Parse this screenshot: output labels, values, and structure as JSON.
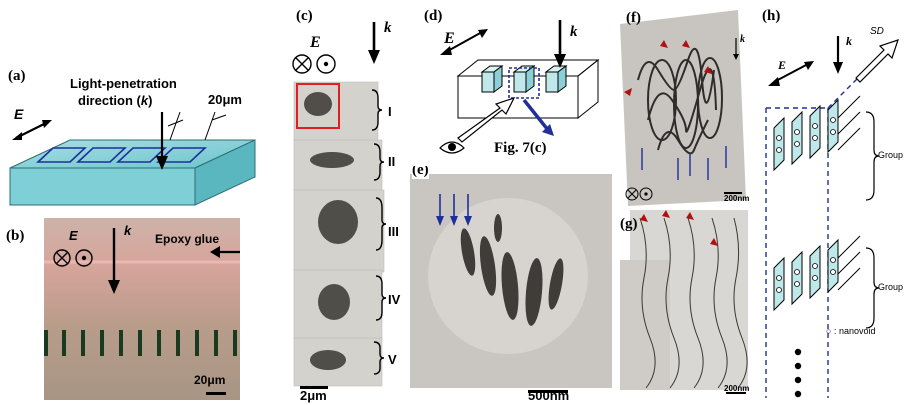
{
  "panels": {
    "a": {
      "label": "(a)",
      "e_label": "E",
      "direction_text_1": "Light-penetration",
      "direction_text_2": "direction (",
      "k_label": "k",
      "direction_close": ")",
      "scale": "20μm"
    },
    "b": {
      "label": "(b)",
      "e_label": "E",
      "k_label": "k",
      "epoxy_label": "Epoxy glue",
      "scale": "20μm"
    },
    "c": {
      "label": "(c)",
      "e_label": "E",
      "k_label": "k",
      "groups": [
        "I",
        "II",
        "III",
        "IV",
        "V"
      ],
      "scale": "2μm"
    },
    "d": {
      "label": "(d)",
      "e_label": "E",
      "k_label": "k",
      "fig_ref": "Fig. 7(c)"
    },
    "e": {
      "label": "(e)",
      "scale": "500nm"
    },
    "f": {
      "label": "(f)",
      "k_label": "k",
      "scale": "200nm"
    },
    "g": {
      "label": "(g)",
      "scale": "200nm"
    },
    "h": {
      "label": "(h)",
      "e_label": "E",
      "k_label": "k",
      "sd_label": "SD",
      "group_labels": [
        "Group",
        "Group"
      ],
      "legend": "○ : nanovoid"
    }
  },
  "colors": {
    "crystal_fill": "#bfe8ea",
    "line_blue": "#1f2f9a",
    "micrograph_bg": "#c8c5c0",
    "epoxy_bg": "#c9a89a"
  }
}
